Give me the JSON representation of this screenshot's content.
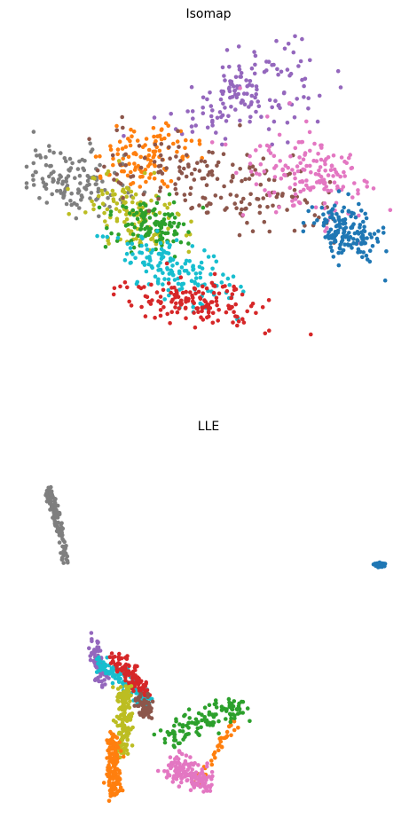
{
  "colors": {
    "blue": "#1f77b4",
    "orange": "#ff7f0e",
    "green": "#2ca02c",
    "red": "#d62728",
    "purple": "#9467bd",
    "brown": "#8c564b",
    "pink": "#e377c2",
    "gray": "#7f7f7f",
    "olive": "#bcbd22",
    "cyan": "#17becf"
  },
  "chart_data": [
    {
      "type": "scatter",
      "title": "Isomap",
      "xlabel": "",
      "ylabel": "",
      "axes_visible": false,
      "grid": false,
      "xlim": [
        0,
        1
      ],
      "ylim": [
        0,
        1
      ],
      "clusters": [
        {
          "color": "purple",
          "center": [
            0.59,
            0.83
          ],
          "spread": [
            0.1,
            0.06
          ],
          "count": 150,
          "angle": 25
        },
        {
          "color": "orange",
          "center": [
            0.33,
            0.64
          ],
          "spread": [
            0.07,
            0.04
          ],
          "count": 110,
          "angle": 25
        },
        {
          "color": "gray",
          "center": [
            0.13,
            0.57
          ],
          "spread": [
            0.07,
            0.045
          ],
          "count": 130,
          "angle": -10
        },
        {
          "color": "olive",
          "center": [
            0.29,
            0.47
          ],
          "spread": [
            0.05,
            0.08
          ],
          "count": 120,
          "angle": 70
        },
        {
          "color": "green",
          "center": [
            0.33,
            0.44
          ],
          "spread": [
            0.04,
            0.05
          ],
          "count": 110,
          "angle": 60
        },
        {
          "color": "brown",
          "center": [
            0.53,
            0.55
          ],
          "spread": [
            0.18,
            0.06
          ],
          "count": 170,
          "angle": -15
        },
        {
          "color": "pink",
          "center": [
            0.77,
            0.58
          ],
          "spread": [
            0.09,
            0.06
          ],
          "count": 160,
          "angle": -25
        },
        {
          "color": "blue",
          "center": [
            0.87,
            0.42
          ],
          "spread": [
            0.05,
            0.035
          ],
          "count": 150,
          "angle": -35
        },
        {
          "color": "cyan",
          "center": [
            0.41,
            0.3
          ],
          "spread": [
            0.1,
            0.04
          ],
          "count": 150,
          "angle": -30
        },
        {
          "color": "red",
          "center": [
            0.46,
            0.21
          ],
          "spread": [
            0.09,
            0.03
          ],
          "count": 150,
          "angle": -10
        }
      ]
    },
    {
      "type": "scatter",
      "title": "LLE",
      "xlabel": "",
      "ylabel": "",
      "axes_visible": false,
      "grid": false,
      "xlim": [
        0,
        1
      ],
      "ylim": [
        0,
        1
      ],
      "clusters": [
        {
          "color": "gray",
          "segment": [
            [
              0.06,
              0.94
            ],
            [
              0.11,
              0.72
            ]
          ],
          "jitter": 0.006,
          "count": 120
        },
        {
          "color": "purple",
          "segment": [
            [
              0.18,
              0.48
            ],
            [
              0.21,
              0.36
            ]
          ],
          "jitter": 0.01,
          "count": 80
        },
        {
          "color": "cyan",
          "segment": [
            [
              0.2,
              0.42
            ],
            [
              0.33,
              0.3
            ]
          ],
          "jitter": 0.012,
          "count": 120
        },
        {
          "color": "red",
          "segment": [
            [
              0.24,
              0.44
            ],
            [
              0.32,
              0.33
            ]
          ],
          "jitter": 0.012,
          "count": 100
        },
        {
          "color": "brown",
          "segment": [
            [
              0.31,
              0.31
            ],
            [
              0.33,
              0.26
            ]
          ],
          "jitter": 0.012,
          "count": 60
        },
        {
          "color": "olive",
          "segment": [
            [
              0.27,
              0.34
            ],
            [
              0.26,
              0.14
            ]
          ],
          "jitter": 0.012,
          "count": 150
        },
        {
          "color": "orange",
          "segment": [
            [
              0.23,
              0.2
            ],
            [
              0.24,
              0.03
            ]
          ],
          "jitter": 0.01,
          "count": 150
        },
        {
          "color": "orange",
          "segment": [
            [
              0.46,
              0.06
            ],
            [
              0.57,
              0.25
            ]
          ],
          "jitter": 0.008,
          "count": 40
        },
        {
          "color": "green",
          "segment": [
            [
              0.38,
              0.19
            ],
            [
              0.58,
              0.29
            ]
          ],
          "jitter": 0.02,
          "count": 120
        },
        {
          "color": "pink",
          "segment": [
            [
              0.4,
              0.11
            ],
            [
              0.49,
              0.06
            ]
          ],
          "jitter": 0.02,
          "count": 150
        },
        {
          "color": "blue",
          "segment": [
            [
              0.95,
              0.71
            ],
            [
              0.97,
              0.71
            ]
          ],
          "jitter": 0.003,
          "count": 60
        }
      ]
    }
  ]
}
